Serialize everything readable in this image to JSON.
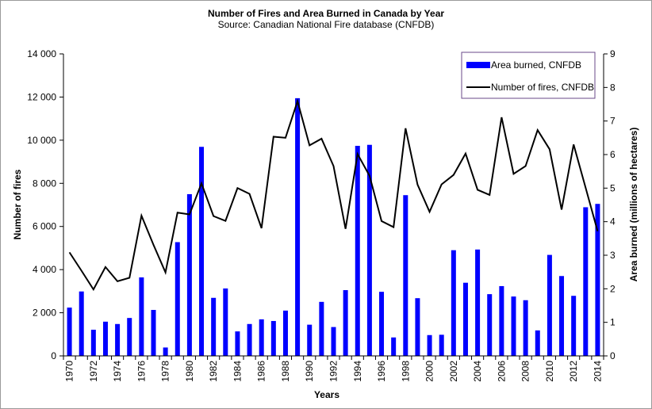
{
  "chart_data": {
    "type": "bar",
    "title": "Number of Fires and Area Burned in Canada by Year",
    "subtitle": "Source: Canadian National Fire database (CNFDB)",
    "xlabel": "Years",
    "ylabel_left": "Number of fires",
    "ylabel_right": "Area burned (millions of hectares)",
    "ylim_left": [
      0,
      14000
    ],
    "ylim_right": [
      0,
      9
    ],
    "yticks_left": [
      "0",
      "2 000",
      "4 000",
      "6 000",
      "8 000",
      "10 000",
      "12 000",
      "14 000"
    ],
    "yticks_right": [
      "0",
      "1",
      "2",
      "3",
      "4",
      "5",
      "6",
      "7",
      "8",
      "9"
    ],
    "grid": false,
    "legend_position": "top-right",
    "x": [
      1970,
      1971,
      1972,
      1973,
      1974,
      1975,
      1976,
      1977,
      1978,
      1979,
      1980,
      1981,
      1982,
      1983,
      1984,
      1985,
      1986,
      1987,
      1988,
      1989,
      1990,
      1991,
      1992,
      1993,
      1994,
      1995,
      1996,
      1997,
      1998,
      1999,
      2000,
      2001,
      2002,
      2003,
      2004,
      2005,
      2006,
      2007,
      2008,
      2009,
      2010,
      2011,
      2012,
      2013,
      2014
    ],
    "xtick_labels": [
      "1970",
      "1972",
      "1974",
      "1976",
      "1978",
      "1980",
      "1982",
      "1984",
      "1986",
      "1988",
      "1990",
      "1992",
      "1994",
      "1996",
      "1998",
      "2000",
      "2002",
      "2004",
      "2006",
      "2008",
      "2010",
      "2012",
      "2014"
    ],
    "series": [
      {
        "name": "Area burned, CNFDB",
        "type": "bar",
        "axis": "right",
        "color": "#0000ff",
        "values": [
          1.44,
          1.92,
          0.78,
          1.02,
          0.95,
          1.13,
          2.34,
          1.37,
          0.25,
          3.39,
          4.82,
          6.23,
          1.73,
          2.01,
          0.73,
          0.95,
          1.09,
          1.04,
          1.35,
          7.68,
          0.93,
          1.61,
          0.86,
          1.96,
          6.26,
          6.29,
          1.91,
          0.55,
          4.79,
          1.72,
          0.62,
          0.63,
          3.15,
          2.18,
          3.17,
          1.84,
          2.08,
          1.77,
          1.66,
          0.76,
          3.01,
          2.38,
          1.79,
          4.43,
          4.53
        ]
      },
      {
        "name": "Number of fires, CNFDB",
        "type": "line",
        "axis": "left",
        "color": "#000000",
        "values": [
          4800,
          3950,
          3080,
          4120,
          3460,
          3620,
          6500,
          5150,
          3870,
          6640,
          6560,
          8000,
          6480,
          6260,
          7780,
          7510,
          5920,
          10160,
          10110,
          11810,
          9760,
          10070,
          8800,
          5890,
          9360,
          8350,
          6250,
          5970,
          10550,
          7940,
          6680,
          7950,
          8390,
          9380,
          7700,
          7460,
          11060,
          8440,
          8800,
          10470,
          9580,
          6780,
          9800,
          7800,
          5780
        ]
      }
    ]
  }
}
